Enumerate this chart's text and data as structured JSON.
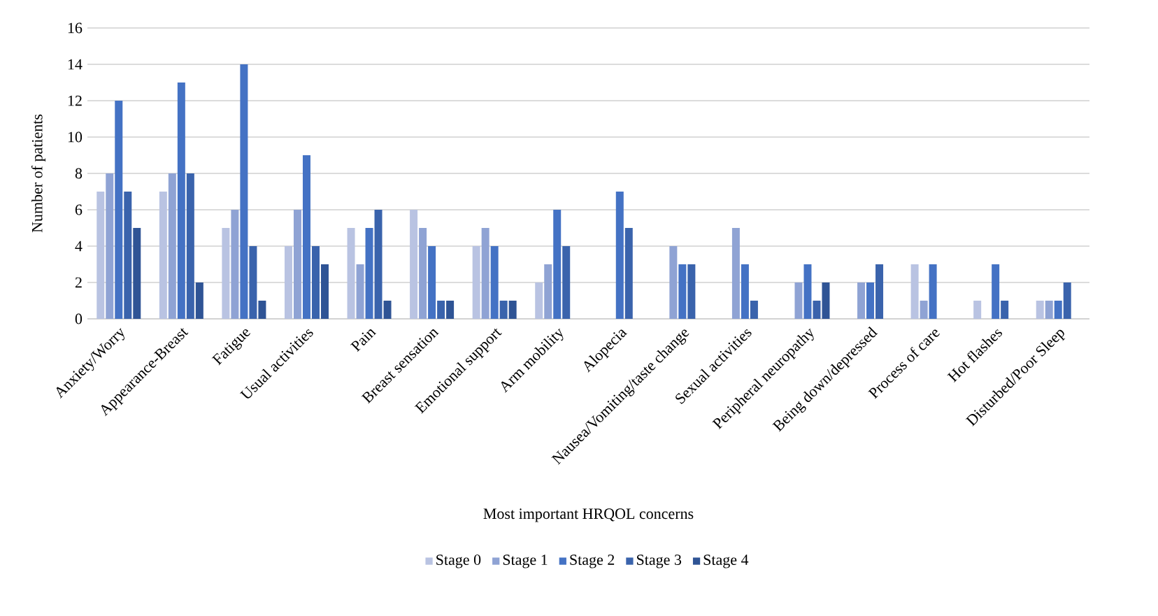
{
  "chart_data": {
    "type": "bar",
    "xlabel": "Most important HRQOL concerns",
    "ylabel": "Number of patients",
    "categories": [
      "Anxiety/Worry",
      "Appearance-Breast",
      "Fatigue",
      "Usual activities",
      "Pain",
      "Breast sensation",
      "Emotional support",
      "Arm mobility",
      "Alopecia",
      "Nausea/Vomiting/taste change",
      "Sexual activities",
      "Peripheral neuropathy",
      "Being down/depressed",
      "Process of care",
      "Hot flashes",
      "Disturbed/Poor Sleep"
    ],
    "series": [
      {
        "name": "Stage 0",
        "color": "#b9c3e2",
        "values": [
          7,
          7,
          5,
          4,
          5,
          6,
          4,
          2,
          0,
          0,
          0,
          0,
          0,
          3,
          1,
          1
        ]
      },
      {
        "name": "Stage 1",
        "color": "#8fa3d4",
        "values": [
          8,
          8,
          6,
          6,
          3,
          5,
          5,
          3,
          0,
          4,
          5,
          2,
          2,
          1,
          0,
          1
        ]
      },
      {
        "name": "Stage 2",
        "color": "#4472c4",
        "values": [
          12,
          13,
          14,
          9,
          5,
          4,
          4,
          6,
          7,
          3,
          3,
          3,
          2,
          3,
          3,
          1
        ]
      },
      {
        "name": "Stage 3",
        "color": "#3a63ac",
        "values": [
          7,
          8,
          4,
          4,
          6,
          1,
          1,
          4,
          5,
          3,
          1,
          1,
          3,
          0,
          1,
          2
        ]
      },
      {
        "name": "Stage 4",
        "color": "#2f5495",
        "values": [
          5,
          2,
          1,
          3,
          1,
          1,
          1,
          0,
          0,
          0,
          0,
          2,
          0,
          0,
          0,
          0
        ]
      }
    ],
    "ylim": [
      0,
      16
    ],
    "yticks": [
      0,
      2,
      4,
      6,
      8,
      10,
      12,
      14,
      16
    ],
    "grid": "y",
    "legend": "bottom"
  }
}
